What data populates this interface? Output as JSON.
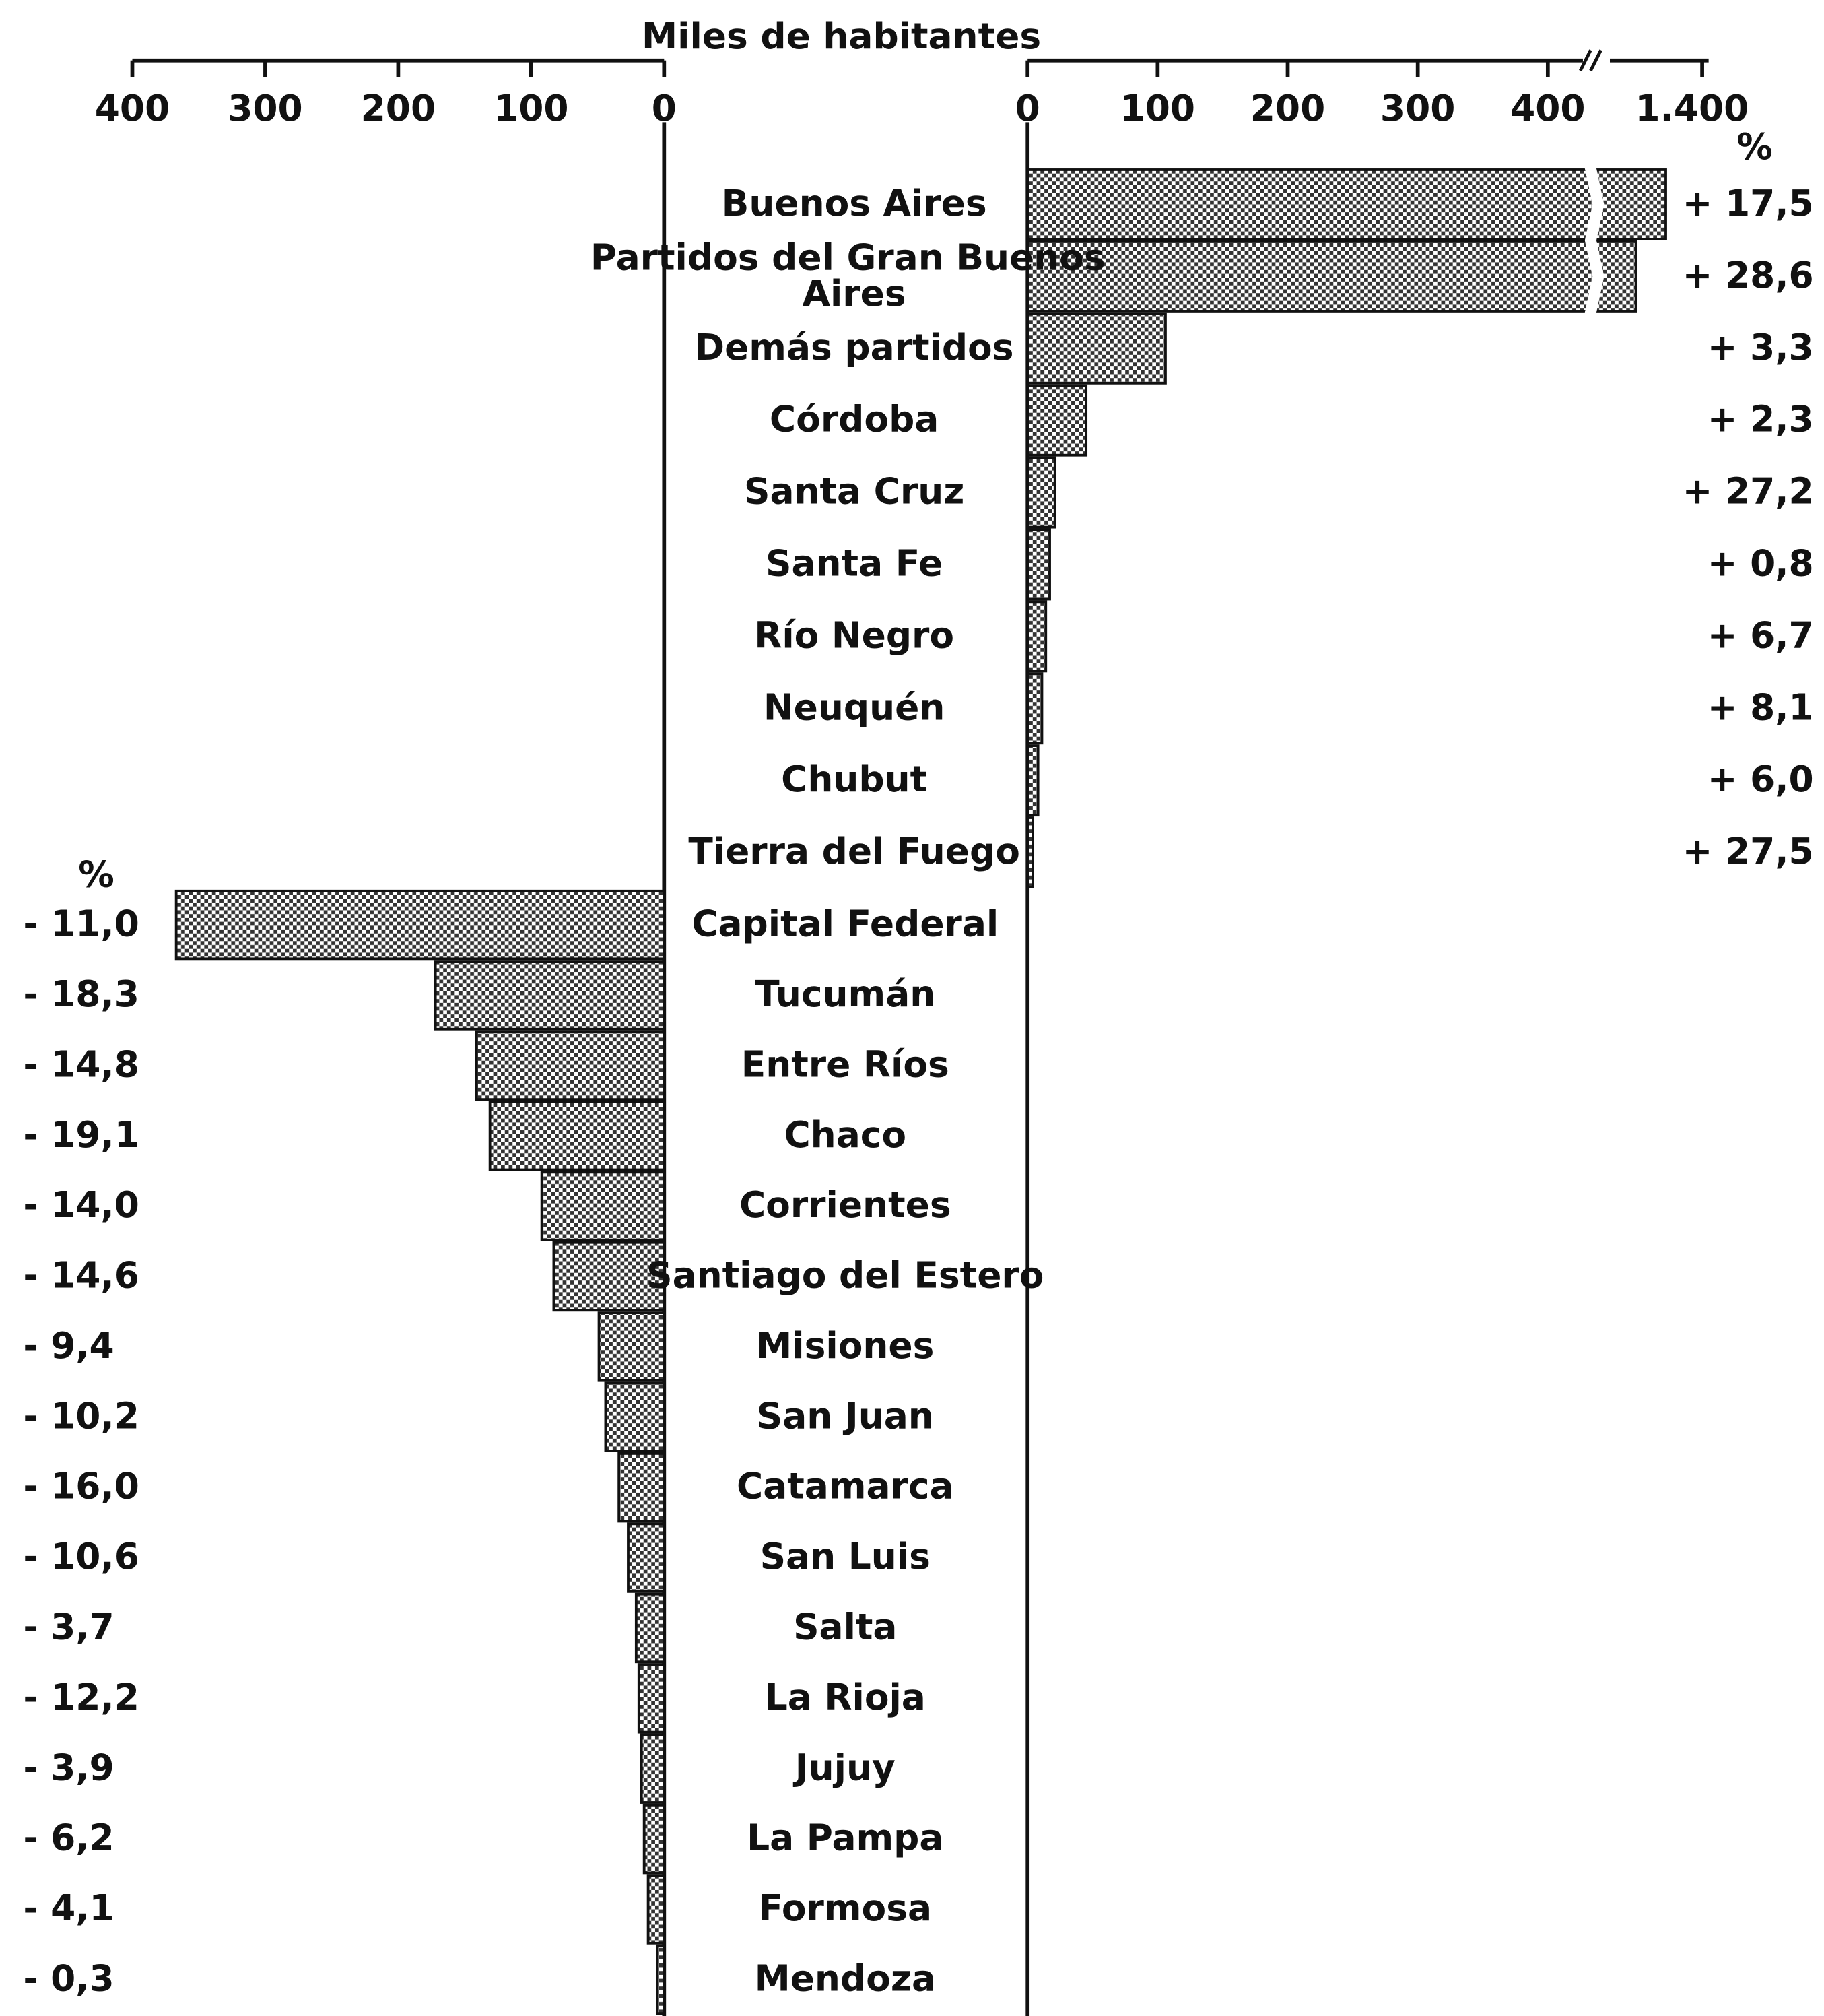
{
  "chart_data": {
    "type": "diverging_bar",
    "title": "Miles de habitantes",
    "percent_symbol": "%",
    "right": {
      "categories": [
        "Buenos Aires",
        "Partidos del Gran Buenos Aires",
        "Demás partidos",
        "Córdoba",
        "Santa Cruz",
        "Santa Fe",
        "Río Negro",
        "Neuquén",
        "Chubut",
        "Tierra del Fuego"
      ],
      "values": [
        1372,
        1349,
        106,
        45,
        21,
        17,
        14,
        11,
        8,
        4
      ],
      "percent_labels": [
        "+ 17,5",
        "+ 28,6",
        "+ 3,3",
        "+ 2,3",
        "+ 27,2",
        "+ 0,8",
        "+ 6,7",
        "+ 8,1",
        "+ 6,0",
        "+ 27,5"
      ],
      "xlim": [
        0,
        1400
      ],
      "xticks": [
        0,
        100,
        200,
        300,
        400,
        {
          "value": 1400,
          "label": "1.400"
        }
      ],
      "axis_break": [
        425,
        1331
      ]
    },
    "left": {
      "categories": [
        "Capital Federal",
        "Tucumán",
        "Entre Ríos",
        "Chaco",
        "Corrientes",
        "Santiago del Estero",
        "Misiones",
        "San Juan",
        "Catamarca",
        "San Luis",
        "Salta",
        "La Rioja",
        "Jujuy",
        "La Pampa",
        "Formosa",
        "Mendoza"
      ],
      "values": [
        367,
        172,
        141,
        131,
        92,
        83,
        49,
        44,
        34,
        27,
        21,
        19,
        17,
        15,
        12,
        5
      ],
      "percent_labels": [
        "- 11,0",
        "- 18,3",
        "- 14,8",
        "- 19,1",
        "- 14,0",
        "- 14,6",
        "- 9,4",
        "- 10,2",
        "- 16,0",
        "- 10,6",
        "- 3,7",
        "- 12,2",
        "- 3,9",
        "- 6,2",
        "- 4,1",
        "- 0,3"
      ],
      "xlim": [
        0,
        400
      ],
      "xticks": [
        400,
        300,
        200,
        100,
        0
      ]
    }
  }
}
